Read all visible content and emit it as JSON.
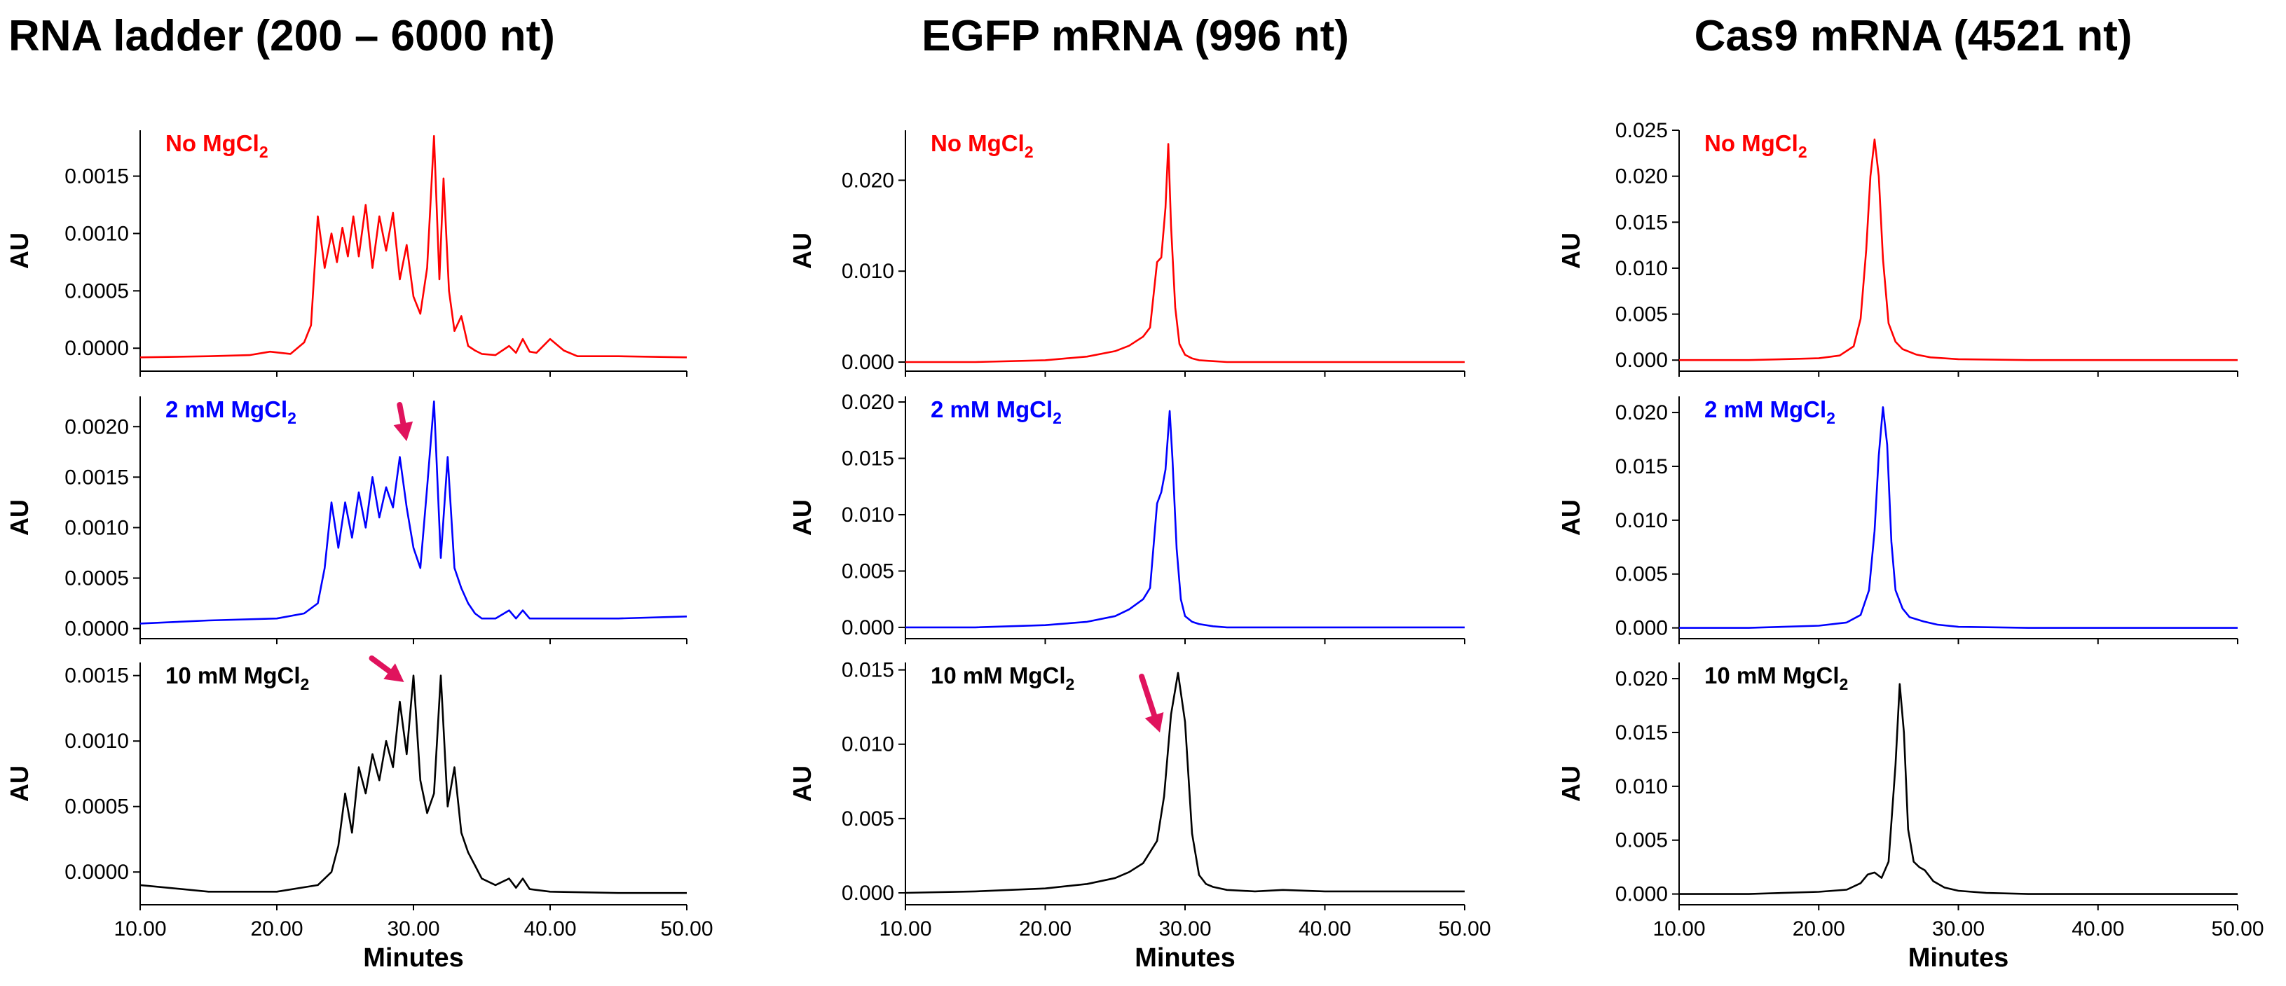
{
  "figure": {
    "x_axis_label": "Minutes",
    "y_axis_label": "AU",
    "x_ticks": [
      "10.00",
      "20.00",
      "30.00",
      "40.00",
      "50.00"
    ],
    "arrow_color": "#E0135D"
  },
  "chart_data": [
    {
      "type": "line",
      "title": "RNA ladder (200 – 6000 nt)",
      "xlabel": "Minutes",
      "ylabel": "AU",
      "xlim": [
        10,
        50
      ],
      "panels": [
        {
          "condition": "No MgCl₂",
          "color": "#FF0000",
          "ylim": [
            -0.0002,
            0.0019
          ],
          "yticks": [
            0,
            0.0005,
            0.001,
            0.0015
          ],
          "ytick_labels": [
            "0.0000",
            "0.0005",
            "0.0010",
            "0.0015"
          ],
          "series": {
            "x": [
              10,
              15,
              18,
              19.5,
              21,
              22,
              22.5,
              23.0,
              23.5,
              24.0,
              24.4,
              24.8,
              25.2,
              25.6,
              26.0,
              26.5,
              27.0,
              27.5,
              28.0,
              28.5,
              29.0,
              29.5,
              30.0,
              30.5,
              31.0,
              31.5,
              31.9,
              32.2,
              32.6,
              33.0,
              33.5,
              34.0,
              34.5,
              35.0,
              36.0,
              37.0,
              37.5,
              38.0,
              38.5,
              39.0,
              40.0,
              41.0,
              42.0,
              45.0,
              50.0
            ],
            "y": [
              -8e-05,
              -7e-05,
              -6e-05,
              -3e-05,
              -5e-05,
              5e-05,
              0.0002,
              0.00115,
              0.0007,
              0.001,
              0.00075,
              0.00105,
              0.0008,
              0.00115,
              0.0008,
              0.00125,
              0.0007,
              0.00115,
              0.00085,
              0.00118,
              0.0006,
              0.0009,
              0.00045,
              0.0003,
              0.0007,
              0.00185,
              0.0006,
              0.00148,
              0.0005,
              0.00015,
              0.00028,
              2e-05,
              -2e-05,
              -5e-05,
              -6e-05,
              2e-05,
              -4e-05,
              8e-05,
              -3e-05,
              -4e-05,
              8e-05,
              -2e-05,
              -7e-05,
              -7e-05,
              -8e-05
            ]
          }
        },
        {
          "condition": "2 mM MgCl₂",
          "color": "#0000FF",
          "ylim": [
            -0.0001,
            0.0023
          ],
          "yticks": [
            0,
            0.0005,
            0.001,
            0.0015,
            0.002
          ],
          "ytick_labels": [
            "0.0000",
            "0.0005",
            "0.0010",
            "0.0015",
            "0.0020"
          ],
          "arrow_at_minutes": 29.5,
          "series": {
            "x": [
              10,
              15,
              20,
              22,
              23.0,
              23.5,
              24.0,
              24.5,
              25.0,
              25.5,
              26.0,
              26.5,
              27.0,
              27.5,
              28.0,
              28.5,
              29.0,
              29.5,
              30.0,
              30.5,
              31.0,
              31.5,
              32.0,
              32.5,
              33.0,
              33.5,
              34.0,
              34.5,
              35.0,
              36.0,
              37.0,
              37.5,
              38.0,
              38.5,
              39.0,
              40.0,
              42.0,
              45.0,
              50.0
            ],
            "y": [
              5e-05,
              8e-05,
              0.0001,
              0.00015,
              0.00025,
              0.0006,
              0.00125,
              0.0008,
              0.00125,
              0.0009,
              0.00135,
              0.001,
              0.0015,
              0.0011,
              0.0014,
              0.0012,
              0.0017,
              0.0012,
              0.0008,
              0.0006,
              0.0014,
              0.00225,
              0.0007,
              0.0017,
              0.0006,
              0.0004,
              0.00025,
              0.00015,
              0.0001,
              0.0001,
              0.00018,
              0.0001,
              0.00018,
              0.0001,
              0.0001,
              0.0001,
              0.0001,
              0.0001,
              0.00012
            ]
          }
        },
        {
          "condition": "10 mM MgCl₂",
          "color": "#000000",
          "ylim": [
            -0.00025,
            0.0016
          ],
          "yticks": [
            0,
            0.0005,
            0.001,
            0.0015
          ],
          "ytick_labels": [
            "0.0000",
            "0.0005",
            "0.0010",
            "0.0015"
          ],
          "arrow_at_minutes": 29.0,
          "series": {
            "x": [
              10,
              15,
              20,
              23,
              24,
              24.5,
              25.0,
              25.5,
              26.0,
              26.5,
              27.0,
              27.5,
              28.0,
              28.5,
              29.0,
              29.5,
              30.0,
              30.5,
              31.0,
              31.5,
              32.0,
              32.5,
              33.0,
              33.5,
              34.0,
              34.5,
              35.0,
              36.0,
              37.0,
              37.5,
              38.0,
              38.5,
              40.0,
              45.0,
              50.0
            ],
            "y": [
              -0.0001,
              -0.00015,
              -0.00015,
              -0.0001,
              0.0,
              0.0002,
              0.0006,
              0.0003,
              0.0008,
              0.0006,
              0.0009,
              0.0007,
              0.001,
              0.0008,
              0.0013,
              0.0009,
              0.0015,
              0.0007,
              0.00045,
              0.0006,
              0.0015,
              0.0005,
              0.0008,
              0.0003,
              0.00015,
              5e-05,
              -5e-05,
              -0.0001,
              -5e-05,
              -0.00012,
              -5e-05,
              -0.00013,
              -0.00015,
              -0.00016,
              -0.00016
            ]
          }
        }
      ]
    },
    {
      "type": "line",
      "title": "EGFP mRNA (996 nt)",
      "xlabel": "Minutes",
      "ylabel": "AU",
      "xlim": [
        10,
        50
      ],
      "panels": [
        {
          "condition": "No MgCl₂",
          "color": "#FF0000",
          "ylim": [
            -0.001,
            0.0255
          ],
          "yticks": [
            0,
            0.01,
            0.02
          ],
          "ytick_labels": [
            "0.000",
            "0.010",
            "0.020"
          ],
          "series": {
            "x": [
              10,
              15,
              20,
              23,
              25,
              26,
              27,
              27.5,
              28.0,
              28.3,
              28.6,
              28.8,
              29.0,
              29.3,
              29.6,
              30.0,
              30.5,
              31.0,
              32.0,
              33.0,
              35.0,
              40.0,
              45.0,
              50.0
            ],
            "y": [
              0.0,
              0.0,
              0.0002,
              0.0006,
              0.0012,
              0.0018,
              0.0028,
              0.0038,
              0.011,
              0.0115,
              0.017,
              0.024,
              0.015,
              0.006,
              0.002,
              0.0008,
              0.0004,
              0.0002,
              0.0001,
              0.0,
              0.0,
              0.0,
              0.0,
              0.0
            ]
          }
        },
        {
          "condition": "2 mM MgCl₂",
          "color": "#0000FF",
          "ylim": [
            -0.001,
            0.0205
          ],
          "yticks": [
            0,
            0.005,
            0.01,
            0.015,
            0.02
          ],
          "ytick_labels": [
            "0.000",
            "0.005",
            "0.010",
            "0.015",
            "0.020"
          ],
          "series": {
            "x": [
              10,
              15,
              20,
              23,
              25,
              26,
              27,
              27.5,
              28.0,
              28.3,
              28.6,
              28.9,
              29.1,
              29.4,
              29.7,
              30.0,
              30.5,
              31.0,
              32.0,
              33.0,
              35.0,
              40.0,
              45.0,
              50.0
            ],
            "y": [
              0.0,
              0.0,
              0.0002,
              0.0005,
              0.001,
              0.0016,
              0.0025,
              0.0035,
              0.011,
              0.012,
              0.014,
              0.0192,
              0.015,
              0.007,
              0.0025,
              0.001,
              0.0005,
              0.0003,
              0.0001,
              0.0,
              0.0,
              0.0,
              0.0,
              0.0
            ]
          }
        },
        {
          "condition": "10 mM MgCl₂",
          "color": "#000000",
          "ylim": [
            -0.0008,
            0.0155
          ],
          "yticks": [
            0,
            0.005,
            0.01,
            0.015
          ],
          "ytick_labels": [
            "0.000",
            "0.005",
            "0.010",
            "0.015"
          ],
          "arrow_at_minutes": 28.5,
          "series": {
            "x": [
              10,
              15,
              20,
              23,
              25,
              26,
              27,
              28.0,
              28.5,
              29.0,
              29.5,
              30.0,
              30.5,
              31.0,
              31.5,
              32.0,
              33.0,
              35.0,
              37.0,
              40.0,
              45.0,
              50.0
            ],
            "y": [
              0.0,
              0.0001,
              0.0003,
              0.0006,
              0.001,
              0.0014,
              0.002,
              0.0035,
              0.0065,
              0.012,
              0.0148,
              0.0115,
              0.004,
              0.0012,
              0.0006,
              0.0004,
              0.0002,
              0.0001,
              0.0002,
              0.0001,
              0.0001,
              0.0001
            ]
          }
        }
      ]
    },
    {
      "type": "line",
      "title": "Cas9 mRNA (4521 nt)",
      "xlabel": "Minutes",
      "ylabel": "AU",
      "xlim": [
        10,
        50
      ],
      "panels": [
        {
          "condition": "No MgCl₂",
          "color": "#FF0000",
          "ylim": [
            -0.0012,
            0.025
          ],
          "yticks": [
            0,
            0.005,
            0.01,
            0.015,
            0.02,
            0.025
          ],
          "ytick_labels": [
            "0.000",
            "0.005",
            "0.010",
            "0.015",
            "0.020",
            "0.025"
          ],
          "series": {
            "x": [
              10,
              15,
              20,
              21.5,
              22.5,
              23.0,
              23.4,
              23.7,
              24.0,
              24.3,
              24.6,
              25.0,
              25.5,
              26.0,
              27.0,
              28.0,
              30.0,
              35.0,
              40.0,
              45.0,
              50.0
            ],
            "y": [
              0.0,
              0.0,
              0.0002,
              0.0005,
              0.0015,
              0.0045,
              0.012,
              0.02,
              0.024,
              0.02,
              0.011,
              0.004,
              0.002,
              0.0012,
              0.0006,
              0.0003,
              0.0001,
              0.0,
              0.0,
              0.0,
              0.0
            ]
          }
        },
        {
          "condition": "2 mM MgCl₂",
          "color": "#0000FF",
          "ylim": [
            -0.001,
            0.0215
          ],
          "yticks": [
            0,
            0.005,
            0.01,
            0.015,
            0.02
          ],
          "ytick_labels": [
            "0.000",
            "0.005",
            "0.010",
            "0.015",
            "0.020"
          ],
          "series": {
            "x": [
              10,
              15,
              20,
              22.0,
              23.0,
              23.6,
              24.0,
              24.3,
              24.6,
              24.9,
              25.2,
              25.5,
              26.0,
              26.5,
              27.5,
              28.5,
              30.0,
              35.0,
              40.0,
              45.0,
              50.0
            ],
            "y": [
              0.0,
              0.0,
              0.0002,
              0.0005,
              0.0012,
              0.0035,
              0.009,
              0.016,
              0.0205,
              0.017,
              0.008,
              0.0035,
              0.0018,
              0.001,
              0.0006,
              0.0003,
              0.0001,
              0.0,
              0.0,
              0.0,
              0.0
            ]
          }
        },
        {
          "condition": "10 mM MgCl₂",
          "color": "#000000",
          "ylim": [
            -0.001,
            0.0215
          ],
          "yticks": [
            0,
            0.005,
            0.01,
            0.015,
            0.02
          ],
          "ytick_labels": [
            "0.000",
            "0.005",
            "0.010",
            "0.015",
            "0.020"
          ],
          "series": {
            "x": [
              10,
              15,
              20,
              22.0,
              23.0,
              23.5,
              24.0,
              24.5,
              25.0,
              25.5,
              25.8,
              26.1,
              26.4,
              26.8,
              27.2,
              27.6,
              28.2,
              29.0,
              30.0,
              32.0,
              35.0,
              40.0,
              45.0,
              50.0
            ],
            "y": [
              0.0,
              0.0,
              0.0002,
              0.0004,
              0.001,
              0.0018,
              0.002,
              0.0015,
              0.003,
              0.012,
              0.0195,
              0.015,
              0.006,
              0.003,
              0.0025,
              0.0022,
              0.0012,
              0.0006,
              0.0003,
              0.0001,
              0.0,
              0.0,
              0.0,
              0.0
            ]
          }
        }
      ]
    }
  ]
}
